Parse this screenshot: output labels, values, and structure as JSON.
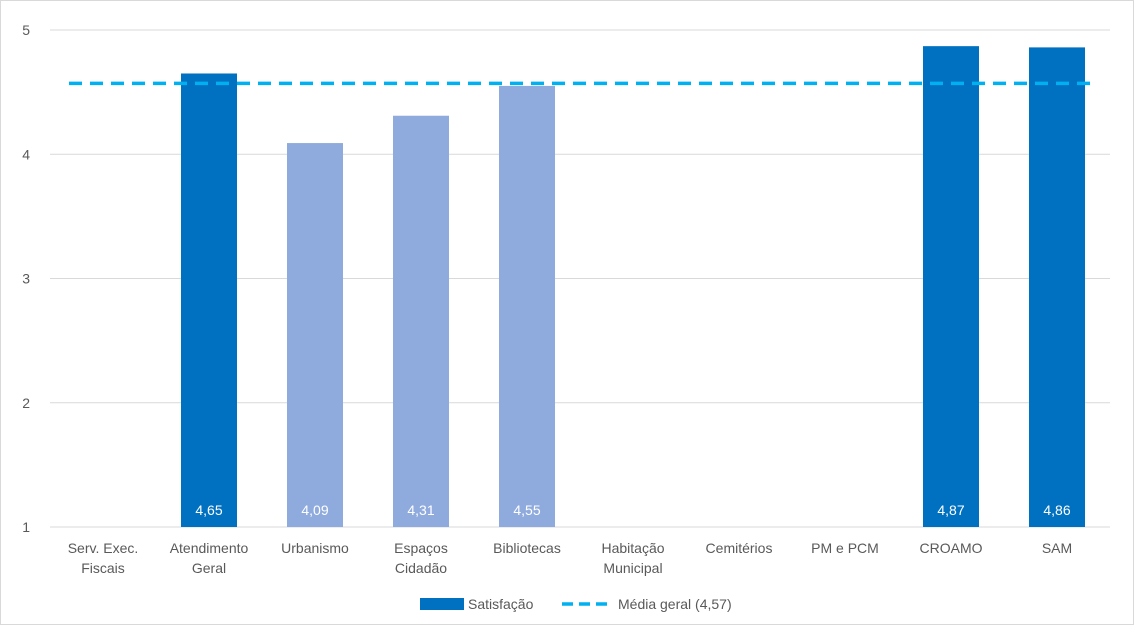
{
  "chart_data": {
    "type": "bar",
    "categories": [
      [
        "Serv. Exec.",
        "Fiscais"
      ],
      [
        "Atendimento",
        "Geral"
      ],
      [
        "Urbanismo"
      ],
      [
        "Espaços",
        "Cidadão"
      ],
      [
        "Bibliotecas"
      ],
      [
        "Habitação",
        "Municipal"
      ],
      [
        "Cemitérios"
      ],
      [
        "PM e PCM"
      ],
      [
        "CROAMO"
      ],
      [
        "SAM"
      ]
    ],
    "series": [
      {
        "name": "Satisfação",
        "values": [
          null,
          4.65,
          4.09,
          4.31,
          4.55,
          null,
          null,
          null,
          4.87,
          4.86
        ],
        "data_labels": [
          "",
          "4,65",
          "4,09",
          "4,31",
          "4,55",
          "",
          "",
          "",
          "4,87",
          "4,86"
        ],
        "bar_colors": [
          "",
          "#0070c0",
          "#8faadc",
          "#8faadc",
          "#8faadc",
          "",
          "",
          "",
          "#0070c0",
          "#0070c0"
        ]
      }
    ],
    "reference_line": {
      "name": "Média geral (4,57)",
      "value": 4.57,
      "color": "#00b0f0",
      "style": "dashed"
    },
    "ylim": [
      1,
      5
    ],
    "yticks": [
      "1",
      "2",
      "3",
      "4",
      "5"
    ],
    "grid": true,
    "legend": {
      "position": "bottom",
      "items": [
        {
          "label": "Satisfação",
          "color": "#0070c0",
          "kind": "bar"
        },
        {
          "label": "Média geral (4,57)",
          "color": "#00b0f0",
          "kind": "dashed-line"
        }
      ]
    }
  }
}
